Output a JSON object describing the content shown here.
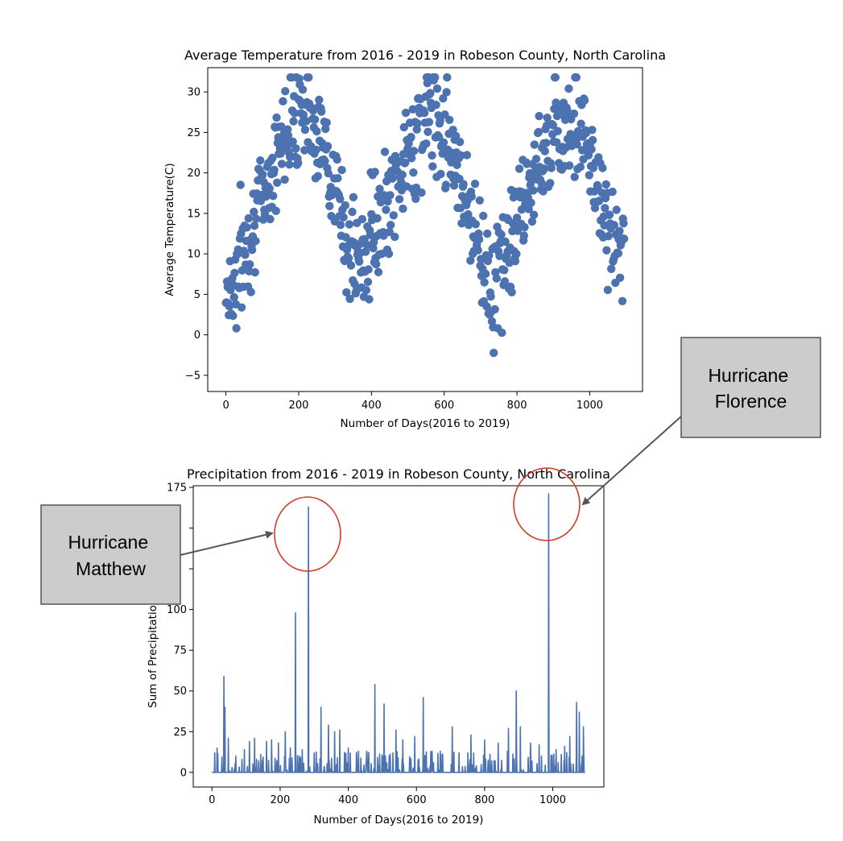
{
  "chart_data": [
    {
      "type": "scatter",
      "title": "Average Temperature from 2016 - 2019 in Robeson County, North Carolina",
      "xlabel": "Number of Days(2016 to 2019)",
      "ylabel": "Average Temperature(C)",
      "xlim": [
        -50,
        1145
      ],
      "ylim": [
        -7,
        33
      ],
      "xticks": [
        0,
        200,
        400,
        600,
        800,
        1000
      ],
      "yticks": [
        -5,
        0,
        5,
        10,
        15,
        20,
        25,
        30
      ],
      "grid": false,
      "color": "#4c72b0",
      "series_note": "daily average temperature, one point per day, seasonal cycle peaking near day 200, 565, 930 and bottoming near day 15, 380, 745",
      "x": [
        0,
        15,
        30,
        45,
        60,
        75,
        90,
        105,
        120,
        135,
        150,
        165,
        180,
        195,
        210,
        225,
        240,
        255,
        270,
        285,
        300,
        315,
        330,
        345,
        360,
        375,
        390,
        405,
        420,
        435,
        450,
        465,
        480,
        495,
        510,
        525,
        540,
        555,
        570,
        585,
        600,
        615,
        630,
        645,
        660,
        675,
        690,
        705,
        720,
        735,
        750,
        765,
        780,
        795,
        810,
        825,
        840,
        855,
        870,
        885,
        900,
        915,
        930,
        945,
        960,
        975,
        990,
        1005,
        1020,
        1035,
        1050,
        1065,
        1080,
        1095
      ],
      "y": [
        6.5,
        5.2,
        8.1,
        9.5,
        11.8,
        14.2,
        16.0,
        17.5,
        19.8,
        21.5,
        23.4,
        25.8,
        27.5,
        28.6,
        29.0,
        28.2,
        27.0,
        25.1,
        22.8,
        20.5,
        18.0,
        15.2,
        12.6,
        10.0,
        8.4,
        9.3,
        11.5,
        13.8,
        12.9,
        14.8,
        16.5,
        18.4,
        20.1,
        21.7,
        23.3,
        24.9,
        26.2,
        27.4,
        27.8,
        27.1,
        26.0,
        24.3,
        22.0,
        19.6,
        17.2,
        14.5,
        12.1,
        9.8,
        7.6,
        6.1,
        7.5,
        9.3,
        11.2,
        13.0,
        14.9,
        16.8,
        18.7,
        20.6,
        22.5,
        24.1,
        25.6,
        26.5,
        27.0,
        26.8,
        26.1,
        25.0,
        23.2,
        21.0,
        18.5,
        15.9,
        13.4,
        11.0,
        9.0,
        12.5
      ]
    },
    {
      "type": "line",
      "title": "Precipitation from 2016 - 2019 in Robeson County, North Carolina",
      "xlabel": "Number of Days(2016 to 2019)",
      "ylabel": "Sum of Precipitatio",
      "xlim": [
        -55,
        1150
      ],
      "ylim": [
        -9,
        176
      ],
      "xticks": [
        0,
        200,
        400,
        600,
        800,
        1000
      ],
      "yticks": [
        0,
        25,
        50,
        75,
        100,
        125,
        150,
        175
      ],
      "ytick_labels_visible": [
        "0",
        "25",
        "50",
        "75",
        "100",
        "",
        "",
        "175"
      ],
      "grid": false,
      "color": "#4c72b0",
      "spikes": [
        {
          "x": 8,
          "y": 12
        },
        {
          "x": 15,
          "y": 15
        },
        {
          "x": 35,
          "y": 59
        },
        {
          "x": 38,
          "y": 40
        },
        {
          "x": 48,
          "y": 21
        },
        {
          "x": 70,
          "y": 10
        },
        {
          "x": 95,
          "y": 14
        },
        {
          "x": 110,
          "y": 19
        },
        {
          "x": 125,
          "y": 21
        },
        {
          "x": 160,
          "y": 19
        },
        {
          "x": 175,
          "y": 20
        },
        {
          "x": 195,
          "y": 18
        },
        {
          "x": 215,
          "y": 25
        },
        {
          "x": 230,
          "y": 15
        },
        {
          "x": 245,
          "y": 98
        },
        {
          "x": 265,
          "y": 14
        },
        {
          "x": 283,
          "y": 163
        },
        {
          "x": 300,
          "y": 12
        },
        {
          "x": 320,
          "y": 40
        },
        {
          "x": 342,
          "y": 29
        },
        {
          "x": 360,
          "y": 25
        },
        {
          "x": 375,
          "y": 26
        },
        {
          "x": 400,
          "y": 15
        },
        {
          "x": 430,
          "y": 13
        },
        {
          "x": 455,
          "y": 12
        },
        {
          "x": 478,
          "y": 54
        },
        {
          "x": 505,
          "y": 42
        },
        {
          "x": 540,
          "y": 26
        },
        {
          "x": 560,
          "y": 20
        },
        {
          "x": 595,
          "y": 22
        },
        {
          "x": 620,
          "y": 46
        },
        {
          "x": 650,
          "y": 6
        },
        {
          "x": 670,
          "y": 13
        },
        {
          "x": 705,
          "y": 28
        },
        {
          "x": 725,
          "y": 12
        },
        {
          "x": 760,
          "y": 23
        },
        {
          "x": 800,
          "y": 20
        },
        {
          "x": 840,
          "y": 18
        },
        {
          "x": 870,
          "y": 27
        },
        {
          "x": 893,
          "y": 50
        },
        {
          "x": 905,
          "y": 28
        },
        {
          "x": 935,
          "y": 18
        },
        {
          "x": 960,
          "y": 17
        },
        {
          "x": 988,
          "y": 171
        },
        {
          "x": 1010,
          "y": 14
        },
        {
          "x": 1035,
          "y": 16
        },
        {
          "x": 1050,
          "y": 22
        },
        {
          "x": 1070,
          "y": 43
        },
        {
          "x": 1078,
          "y": 37
        },
        {
          "x": 1090,
          "y": 28
        }
      ]
    }
  ],
  "annotations": {
    "matthew": "Hurricane Matthew",
    "florence": "Hurricane Florence"
  }
}
